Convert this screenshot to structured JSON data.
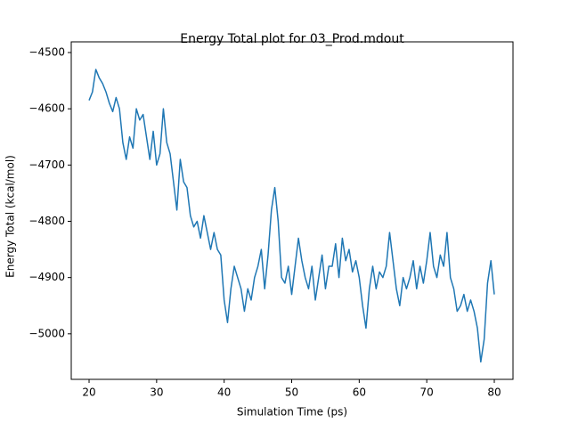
{
  "chart_data": {
    "type": "line",
    "title": "Energy Total plot for 03_Prod.mdout",
    "x_label": "Simulation Time (ps)",
    "y_label": "Energy Total (kcal/mol)",
    "xlim": [
      17.36,
      82.77
    ],
    "ylim": [
      -5081,
      -4481
    ],
    "xticks": [
      20,
      30,
      40,
      50,
      60,
      70,
      80
    ],
    "yticks": [
      {
        "value": -5000,
        "label": "−5000"
      },
      {
        "value": -4900,
        "label": "−4900"
      },
      {
        "value": -4800,
        "label": "−4800"
      },
      {
        "value": -4700,
        "label": "−4700"
      },
      {
        "value": -4600,
        "label": "−4600"
      },
      {
        "value": -4500,
        "label": "−4500"
      }
    ],
    "x": [
      20,
      20.5,
      21,
      21.5,
      22,
      22.5,
      23,
      23.5,
      24,
      24.5,
      25,
      25.5,
      26,
      26.5,
      27,
      27.5,
      28,
      28.5,
      29,
      29.5,
      30,
      30.5,
      31,
      31.5,
      32,
      32.5,
      33,
      33.5,
      34,
      34.5,
      35,
      35.5,
      36,
      36.5,
      37,
      37.5,
      38,
      38.5,
      39,
      39.5,
      40,
      40.5,
      41,
      41.5,
      42,
      42.5,
      43,
      43.5,
      44,
      44.5,
      45,
      45.5,
      46,
      46.5,
      47,
      47.5,
      48,
      48.5,
      49,
      49.5,
      50,
      50.5,
      51,
      51.5,
      52,
      52.5,
      53,
      53.5,
      54,
      54.5,
      55,
      55.5,
      56,
      56.5,
      57,
      57.5,
      58,
      58.5,
      59,
      59.5,
      60,
      60.5,
      61,
      61.5,
      62,
      62.5,
      63,
      63.5,
      64,
      64.5,
      65,
      65.5,
      66,
      66.5,
      67,
      67.5,
      68,
      68.5,
      69,
      69.5,
      70,
      70.5,
      71,
      71.5,
      72,
      72.5,
      73,
      73.5,
      74,
      74.5,
      75,
      75.5,
      76,
      76.5,
      77,
      77.5,
      78,
      78.5,
      79,
      79.5,
      80
    ],
    "series": [
      {
        "name": "Energy Total",
        "color": "#1f77b4",
        "values": [
          -4585,
          -4570,
          -4530,
          -4545,
          -4555,
          -4570,
          -4590,
          -4605,
          -4580,
          -4600,
          -4660,
          -4690,
          -4650,
          -4670,
          -4600,
          -4620,
          -4610,
          -4650,
          -4690,
          -4640,
          -4700,
          -4680,
          -4600,
          -4660,
          -4680,
          -4730,
          -4780,
          -4690,
          -4730,
          -4740,
          -4790,
          -4810,
          -4800,
          -4830,
          -4790,
          -4820,
          -4850,
          -4820,
          -4850,
          -4860,
          -4940,
          -4980,
          -4920,
          -4880,
          -4900,
          -4920,
          -4960,
          -4920,
          -4940,
          -4900,
          -4880,
          -4850,
          -4920,
          -4860,
          -4780,
          -4740,
          -4800,
          -4900,
          -4910,
          -4880,
          -4930,
          -4880,
          -4830,
          -4870,
          -4900,
          -4920,
          -4880,
          -4940,
          -4900,
          -4860,
          -4920,
          -4880,
          -4880,
          -4840,
          -4900,
          -4830,
          -4870,
          -4850,
          -4890,
          -4870,
          -4900,
          -4950,
          -4990,
          -4920,
          -4880,
          -4920,
          -4890,
          -4900,
          -4880,
          -4820,
          -4870,
          -4920,
          -4950,
          -4900,
          -4920,
          -4900,
          -4870,
          -4920,
          -4880,
          -4910,
          -4870,
          -4820,
          -4880,
          -4900,
          -4860,
          -4880,
          -4820,
          -4900,
          -4920,
          -4960,
          -4950,
          -4930,
          -4960,
          -4940,
          -4960,
          -4990,
          -5050,
          -5010,
          -4910,
          -4870,
          -4930
        ]
      }
    ]
  }
}
